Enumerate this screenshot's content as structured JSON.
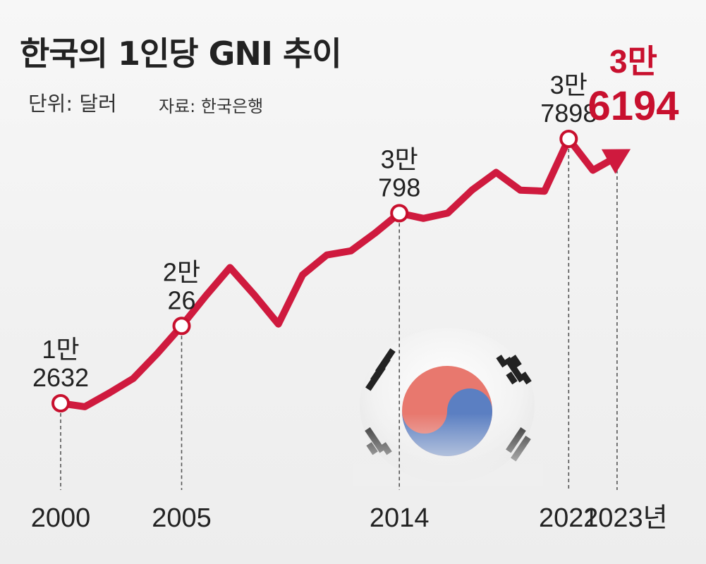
{
  "header": {
    "title": "한국의 1인당 GNI 추이",
    "unit": "단위: 달러",
    "source": "자료: 한국은행"
  },
  "colors": {
    "line": "#cf1a3e",
    "highlight": "#c8102e",
    "text": "#222222",
    "guide": "#555555"
  },
  "icon": "korean-flag-taegeukgi",
  "chart_data": {
    "type": "line",
    "title": "한국의 1인당 GNI 추이",
    "unit": "달러",
    "x": [
      2000,
      2001,
      2002,
      2003,
      2004,
      2005,
      2006,
      2007,
      2008,
      2009,
      2010,
      2011,
      2012,
      2013,
      2014,
      2015,
      2016,
      2017,
      2018,
      2019,
      2020,
      2021,
      2022,
      2023
    ],
    "values": [
      12632,
      12300,
      13600,
      15000,
      17400,
      20026,
      22900,
      25600,
      23000,
      20200,
      24900,
      26800,
      27200,
      28900,
      30798,
      30300,
      30800,
      33000,
      34700,
      33000,
      32900,
      37898,
      34900,
      36194
    ],
    "annotations": [
      {
        "year": "2000",
        "line1": "1만",
        "line2": "2632",
        "emphasis": false
      },
      {
        "year": "2005",
        "line1": "2만",
        "line2": "26",
        "emphasis": false
      },
      {
        "year": "2014",
        "line1": "3만",
        "line2": "798",
        "emphasis": false
      },
      {
        "year": "2021",
        "line1": "3만",
        "line2": "7898",
        "emphasis": false
      },
      {
        "year": "2023",
        "line1": "3만",
        "line2": "6194",
        "emphasis": true
      }
    ],
    "xticks": [
      "2000",
      "2005",
      "2014",
      "2021",
      "2023년"
    ],
    "grid": false,
    "legend": "none"
  }
}
